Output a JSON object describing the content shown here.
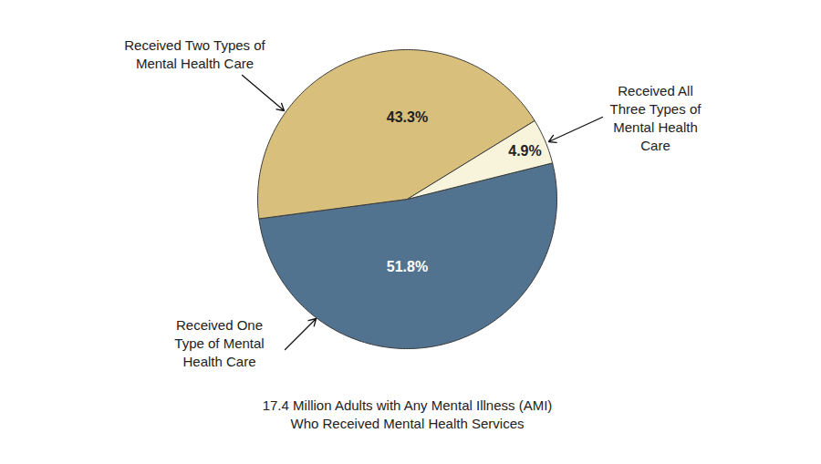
{
  "chart_data": {
    "type": "pie",
    "title": "17.4 Million Adults with Any Mental Illness (AMI)\nWho Received Mental Health Services",
    "categories": [
      "Received One\nType of Mental\nHealth Care",
      "Received Two Types of\nMental Health Care",
      "Received All\nThree Types of\nMental Health\nCare"
    ],
    "values": [
      51.8,
      43.3,
      4.9
    ],
    "value_labels": [
      "51.8%",
      "43.3%",
      "4.9%"
    ],
    "colors": [
      "#52738f",
      "#d8c07c",
      "#f8f4dc"
    ],
    "data_labels": true
  }
}
